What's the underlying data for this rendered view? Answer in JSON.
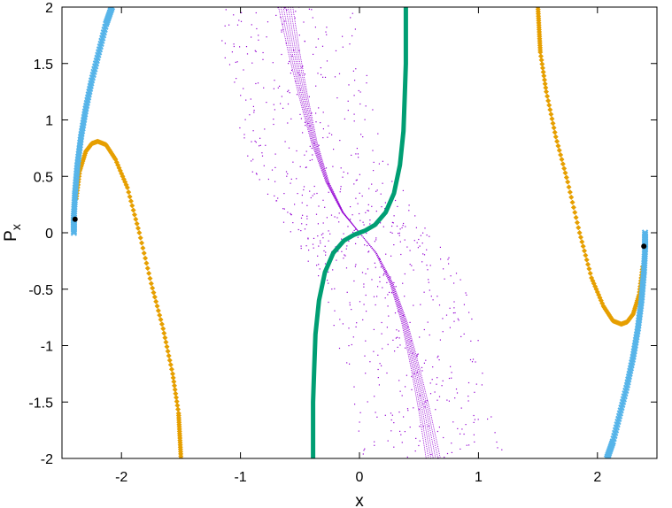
{
  "chart_data": {
    "type": "scatter",
    "xlabel": "x",
    "ylabel": "P",
    "ylabel_sub": "x",
    "xlim": [
      -2.5,
      2.5
    ],
    "ylim": [
      -2,
      2
    ],
    "xticks": [
      -2,
      -1,
      0,
      1,
      2
    ],
    "yticks": [
      2,
      1.5,
      1,
      0.5,
      0,
      -0.5,
      -1,
      -1.5,
      -2
    ],
    "xtick_labels": [
      "-2",
      "-1",
      "0",
      "1",
      "2"
    ],
    "ytick_labels": [
      "2",
      "1.5",
      "1",
      "0.5",
      "0",
      "-0.5",
      "-1",
      "-1.5",
      "-2"
    ],
    "grid": false,
    "legend": "none",
    "series": [
      {
        "kind": "scatter-dots",
        "color": "#9400d3",
        "description_key": "violet",
        "branches": [
          {
            "x": [
              -0.62,
              -0.55,
              -0.47,
              -0.38,
              -0.27,
              -0.14,
              0.0
            ],
            "y": [
              2.0,
              1.6,
              1.2,
              0.8,
              0.45,
              0.18,
              0.0
            ]
          },
          {
            "x": [
              0.0,
              0.14,
              0.27,
              0.38,
              0.47,
              0.55,
              0.62
            ],
            "y": [
              0.0,
              -0.18,
              -0.45,
              -0.8,
              -1.2,
              -1.6,
              -2.0
            ]
          }
        ]
      },
      {
        "kind": "thick-line",
        "color": "#009e73",
        "branches": [
          {
            "x": [
              0.39,
              0.39,
              0.39,
              0.38,
              0.37,
              0.34,
              0.29,
              0.22,
              0.13,
              0.05,
              0.0
            ],
            "y": [
              2.0,
              1.8,
              1.5,
              1.2,
              0.9,
              0.6,
              0.35,
              0.18,
              0.07,
              0.02,
              0.0
            ]
          },
          {
            "x": [
              0.0,
              -0.05,
              -0.13,
              -0.22,
              -0.29,
              -0.34,
              -0.37,
              -0.38,
              -0.39,
              -0.39,
              -0.39
            ],
            "y": [
              0.0,
              -0.02,
              -0.07,
              -0.18,
              -0.35,
              -0.6,
              -0.9,
              -1.2,
              -1.5,
              -1.8,
              -2.0
            ]
          }
        ]
      },
      {
        "kind": "diamonds",
        "color": "#e69f00",
        "branches": [
          {
            "x": [
              -2.38,
              -2.35,
              -2.3,
              -2.25,
              -2.2,
              -2.13,
              -2.05,
              -1.95,
              -1.85,
              -1.75,
              -1.65,
              -1.57,
              -1.52,
              -1.51,
              -1.5
            ],
            "y": [
              0.3,
              0.55,
              0.72,
              0.79,
              0.81,
              0.78,
              0.65,
              0.4,
              0.0,
              -0.45,
              -0.85,
              -1.25,
              -1.6,
              -1.8,
              -2.0
            ]
          },
          {
            "x": [
              2.38,
              2.35,
              2.3,
              2.25,
              2.2,
              2.13,
              2.05,
              1.95,
              1.85,
              1.75,
              1.65,
              1.57,
              1.52,
              1.51,
              1.5
            ],
            "y": [
              -0.3,
              -0.55,
              -0.72,
              -0.79,
              -0.81,
              -0.78,
              -0.65,
              -0.4,
              0.0,
              0.45,
              0.85,
              1.25,
              1.6,
              1.8,
              2.0
            ]
          }
        ]
      },
      {
        "kind": "crosses",
        "color": "#56b4e9",
        "branches": [
          {
            "x": [
              -2.4,
              -2.4,
              -2.39,
              -2.37,
              -2.34,
              -2.3,
              -2.25,
              -2.19,
              -2.13,
              -2.08
            ],
            "y": [
              0.0,
              0.15,
              0.35,
              0.6,
              0.85,
              1.1,
              1.35,
              1.6,
              1.85,
              2.0
            ]
          },
          {
            "x": [
              2.4,
              2.4,
              2.39,
              2.37,
              2.34,
              2.3,
              2.25,
              2.19,
              2.13,
              2.08
            ],
            "y": [
              0.0,
              -0.15,
              -0.35,
              -0.6,
              -0.85,
              -1.1,
              -1.35,
              -1.6,
              -1.85,
              -2.0
            ]
          }
        ]
      }
    ],
    "markers": [
      {
        "x": -2.39,
        "y": 0.12,
        "color": "#000000"
      },
      {
        "x": 2.39,
        "y": -0.12,
        "color": "#000000"
      }
    ]
  }
}
